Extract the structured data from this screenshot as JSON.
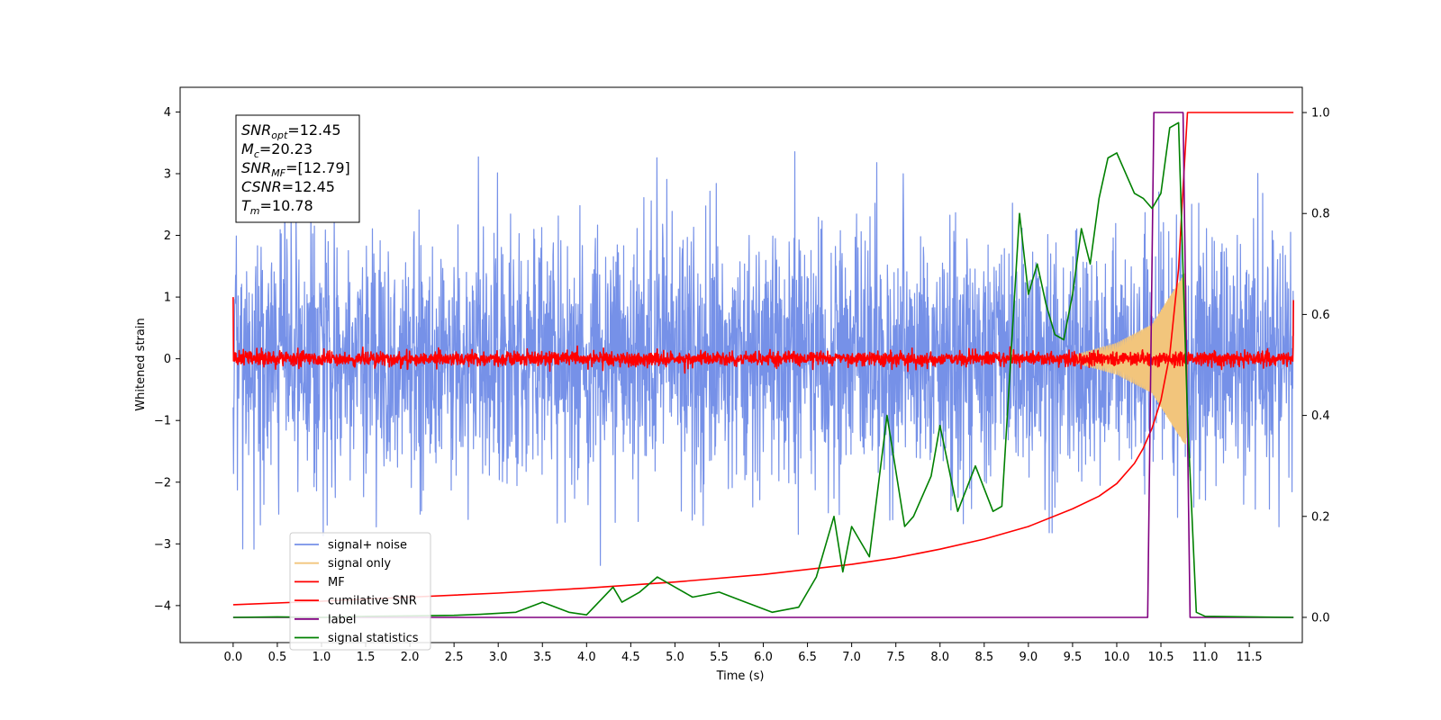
{
  "chart_data": {
    "type": "line",
    "title": "",
    "xlabel": "Time (s)",
    "ylabel": "Whitened strain",
    "xlim": [
      -0.6,
      12.1
    ],
    "ylim": [
      -4.6,
      4.4
    ],
    "y2lim": [
      -0.05,
      1.05
    ],
    "x_ticks": [
      "0.0",
      "0.5",
      "1.0",
      "1.5",
      "2.0",
      "2.5",
      "3.0",
      "3.5",
      "4.0",
      "4.5",
      "5.0",
      "5.5",
      "6.0",
      "6.5",
      "7.0",
      "7.5",
      "8.0",
      "8.5",
      "9.0",
      "9.5",
      "10.0",
      "10.5",
      "11.0",
      "11.5"
    ],
    "y_ticks": [
      "4",
      "3",
      "2",
      "1",
      "0",
      "−1",
      "−2",
      "−3",
      "−4"
    ],
    "y2_ticks": [
      "1.0",
      "0.8",
      "0.6",
      "0.4",
      "0.2",
      "0.0"
    ],
    "grid": false,
    "legend_position": "lower-left",
    "info_box": [
      {
        "base": "SNR",
        "sub": "opt",
        "value": "=12.45"
      },
      {
        "base": "M",
        "sub": "c",
        "value": "=20.23"
      },
      {
        "base": "SNR",
        "sub": "MF",
        "value": "=[12.79]"
      },
      {
        "base": "CSNR",
        "sub": "",
        "value": "=12.45"
      },
      {
        "base": "T",
        "sub": "m",
        "value": "=10.78"
      }
    ],
    "series": [
      {
        "name": "signal+ noise",
        "color": "#7691e8",
        "axis": "left",
        "kind": "noise",
        "x_range": [
          0.0,
          12.0
        ],
        "amplitude_envelope": [
          [
            0.0,
            1.0
          ],
          [
            12.0,
            1.0
          ]
        ],
        "peak_max": 4.0,
        "peak_min": -3.85
      },
      {
        "name": "signal only",
        "color": "#f2c57c",
        "axis": "left",
        "kind": "chirp",
        "x_range": [
          0.0,
          10.78
        ],
        "amplitude_envelope": [
          [
            9.5,
            0.05
          ],
          [
            10.0,
            0.25
          ],
          [
            10.4,
            0.55
          ],
          [
            10.78,
            1.4
          ]
        ]
      },
      {
        "name": "MF",
        "color": "#ff0000",
        "axis": "left",
        "kind": "noise",
        "x_range": [
          0.0,
          12.0
        ],
        "amplitude_envelope": [
          [
            0.0,
            0.06
          ],
          [
            12.0,
            0.06
          ]
        ],
        "edge_values": [
          1.0,
          0.95
        ]
      },
      {
        "name": "cumilative SNR",
        "color": "#ff0000",
        "axis": "right",
        "x": [
          0.0,
          1.0,
          2.0,
          3.0,
          4.0,
          5.0,
          6.0,
          7.0,
          7.5,
          8.0,
          8.5,
          9.0,
          9.5,
          9.8,
          10.0,
          10.2,
          10.3,
          10.4,
          10.5,
          10.6,
          10.7,
          10.75,
          10.8,
          12.0
        ],
        "values": [
          0.025,
          0.032,
          0.04,
          0.048,
          0.058,
          0.07,
          0.085,
          0.105,
          0.118,
          0.135,
          0.155,
          0.18,
          0.215,
          0.24,
          0.265,
          0.305,
          0.335,
          0.375,
          0.43,
          0.52,
          0.69,
          0.85,
          1.0,
          1.0
        ]
      },
      {
        "name": "label",
        "color": "#800080",
        "axis": "right",
        "x": [
          0.0,
          10.35,
          10.42,
          10.75,
          10.83,
          12.0
        ],
        "values": [
          0.0,
          0.0,
          1.0,
          1.0,
          0.0,
          0.0
        ]
      },
      {
        "name": "signal statistics",
        "color": "#008000",
        "axis": "right",
        "x": [
          0.0,
          0.5,
          1.0,
          1.5,
          2.0,
          2.5,
          2.8,
          3.2,
          3.5,
          3.8,
          4.0,
          4.3,
          4.4,
          4.6,
          4.8,
          5.0,
          5.2,
          5.5,
          5.8,
          6.1,
          6.4,
          6.5,
          6.6,
          6.8,
          6.9,
          7.0,
          7.2,
          7.4,
          7.6,
          7.7,
          7.9,
          8.0,
          8.2,
          8.4,
          8.6,
          8.7,
          8.9,
          9.0,
          9.1,
          9.2,
          9.3,
          9.4,
          9.5,
          9.6,
          9.7,
          9.8,
          9.9,
          10.0,
          10.2,
          10.3,
          10.4,
          10.5,
          10.6,
          10.7,
          10.8,
          10.9,
          11.0,
          11.5,
          12.0
        ],
        "values": [
          0.0,
          0.001,
          0.0,
          0.002,
          0.003,
          0.004,
          0.006,
          0.01,
          0.03,
          0.01,
          0.005,
          0.06,
          0.03,
          0.05,
          0.08,
          0.06,
          0.04,
          0.05,
          0.03,
          0.01,
          0.02,
          0.05,
          0.08,
          0.2,
          0.09,
          0.18,
          0.12,
          0.4,
          0.18,
          0.2,
          0.28,
          0.38,
          0.21,
          0.3,
          0.21,
          0.22,
          0.8,
          0.64,
          0.7,
          0.62,
          0.56,
          0.55,
          0.64,
          0.77,
          0.7,
          0.83,
          0.91,
          0.92,
          0.84,
          0.83,
          0.81,
          0.84,
          0.97,
          0.98,
          0.4,
          0.01,
          0.002,
          0.001,
          0.0
        ]
      }
    ]
  }
}
